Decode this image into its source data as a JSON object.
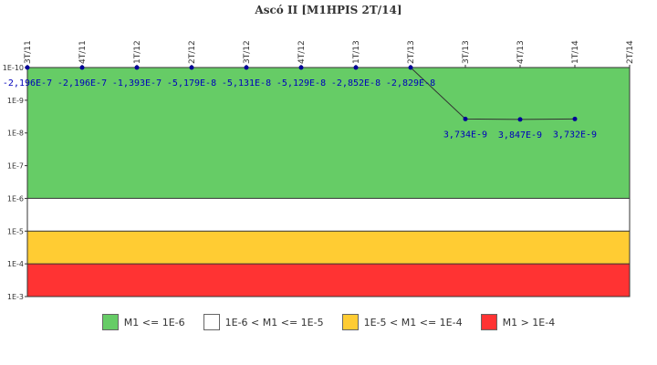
{
  "chart_data": {
    "type": "line",
    "title": "Ascó II [M1HPIS 2T/14]",
    "scale": "log",
    "y_axis_inverted": true,
    "ylim": [
      1e-10,
      0.001
    ],
    "y_ticks": [
      "1E-10",
      "1E-9",
      "1E-8",
      "1E-7",
      "1E-6",
      "1E-5",
      "1E-4",
      "1E-3"
    ],
    "categories": [
      "3T/11",
      "4T/11",
      "1T/12",
      "2T/12",
      "3T/12",
      "4T/12",
      "1T/13",
      "2T/13",
      "3T/13",
      "4T/13",
      "1T/14",
      "2T/14"
    ],
    "values": [
      -2.196e-07,
      -2.196e-07,
      -1.393e-07,
      -5.179e-08,
      -5.131e-08,
      -5.129e-08,
      -2.852e-08,
      -2.829e-08,
      3.734e-09,
      3.847e-09,
      3.732e-09,
      null
    ],
    "data_labels": [
      "-2,196E-7",
      "-2,196E-7",
      "-1,393E-7",
      "-5,179E-8",
      "-5,131E-8",
      "-5,129E-8",
      "-2,852E-8",
      "-2,829E-8",
      "3,734E-9",
      "3,847E-9",
      "3,732E-9",
      ""
    ],
    "bands": [
      {
        "from": 1e-10,
        "to": 1e-06,
        "color": "#66cc66"
      },
      {
        "from": 1e-06,
        "to": 1e-05,
        "color": "#ffffff"
      },
      {
        "from": 1e-05,
        "to": 0.0001,
        "color": "#ffcc33"
      },
      {
        "from": 0.0001,
        "to": 0.001,
        "color": "#ff3333"
      }
    ],
    "line_color": "#333333",
    "marker_color": "#000099",
    "legend": [
      {
        "label": "M1 <= 1E-6",
        "color": "#66cc66"
      },
      {
        "label": "1E-6 < M1 <= 1E-5",
        "color": "#ffffff"
      },
      {
        "label": "1E-5 < M1 <= 1E-4",
        "color": "#ffcc33"
      },
      {
        "label": "M1 > 1E-4",
        "color": "#ff3333"
      }
    ]
  }
}
